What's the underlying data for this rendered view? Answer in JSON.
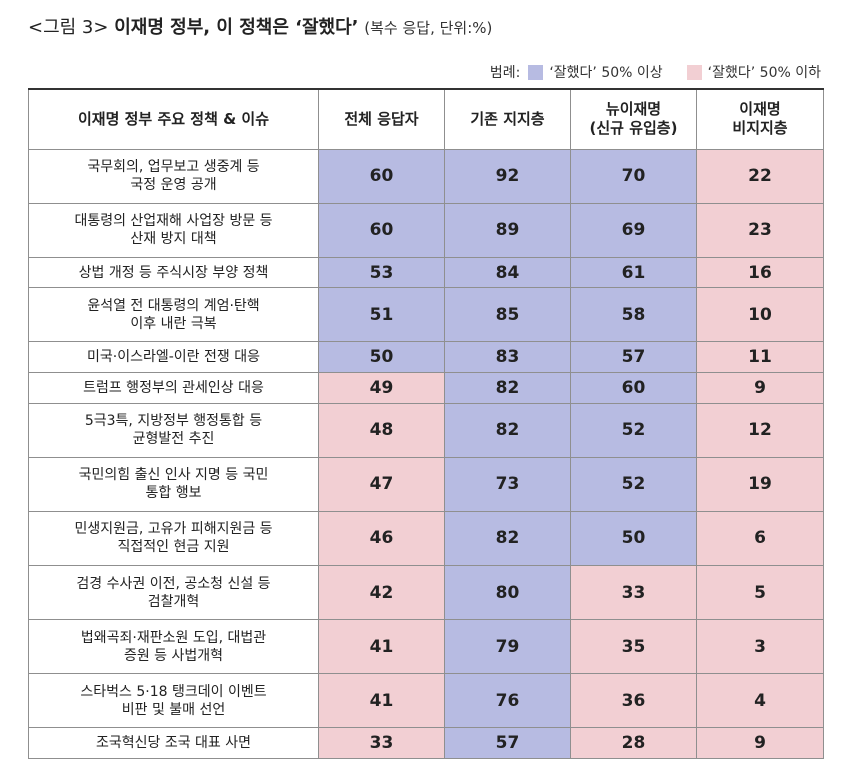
{
  "title": {
    "prefix": "<그림 3>",
    "main": "이재명 정부, 이 정책은 ‘잘했다’",
    "note": "(복수 응답, 단위:%)"
  },
  "legend": {
    "label": "범례:",
    "high": "‘잘했다’ 50% 이상",
    "low": "‘잘했다’ 50% 이하"
  },
  "colors": {
    "high": "#b7bbe2",
    "low": "#f2cfd3"
  },
  "chart_data": {
    "type": "table",
    "columns": [
      "이재명 정부 주요 정책 & 이슈",
      "전체 응답자",
      "기존 지지층",
      "뉴이재명\n(신규 유입층)",
      "이재명\n비지지층"
    ],
    "threshold": 50,
    "rows": [
      {
        "issue": "국무회의, 업무보고 생중계 등\n국정 운영 공개",
        "values": [
          60,
          92,
          70,
          22
        ]
      },
      {
        "issue": "대통령의 산업재해 사업장 방문 등\n산재 방지 대책",
        "values": [
          60,
          89,
          69,
          23
        ]
      },
      {
        "issue": "상법 개정 등 주식시장 부양 정책",
        "values": [
          53,
          84,
          61,
          16
        ]
      },
      {
        "issue": "윤석열 전 대통령의 계엄·탄핵\n이후 내란 극복",
        "values": [
          51,
          85,
          58,
          10
        ]
      },
      {
        "issue": "미국·이스라엘-이란 전쟁 대응",
        "values": [
          50,
          83,
          57,
          11
        ]
      },
      {
        "issue": "트럼프 행정부의 관세인상 대응",
        "values": [
          49,
          82,
          60,
          9
        ]
      },
      {
        "issue": "5극3특, 지방정부 행정통합 등\n균형발전 추진",
        "values": [
          48,
          82,
          52,
          12
        ]
      },
      {
        "issue": "국민의힘 출신 인사 지명 등 국민\n통합 행보",
        "values": [
          47,
          73,
          52,
          19
        ]
      },
      {
        "issue": "민생지원금, 고유가 피해지원금 등\n직접적인 현금 지원",
        "values": [
          46,
          82,
          50,
          6
        ]
      },
      {
        "issue": "검경 수사권 이전, 공소청 신설 등\n검찰개혁",
        "values": [
          42,
          80,
          33,
          5
        ]
      },
      {
        "issue": "법왜곡죄·재판소원 도입, 대법관\n증원 등 사법개혁",
        "values": [
          41,
          79,
          35,
          3
        ]
      },
      {
        "issue": "스타벅스 5·18 탱크데이 이벤트\n비판 및 불매 선언",
        "values": [
          41,
          76,
          36,
          4
        ]
      },
      {
        "issue": "조국혁신당 조국 대표 사면",
        "values": [
          33,
          57,
          28,
          9
        ]
      }
    ]
  }
}
